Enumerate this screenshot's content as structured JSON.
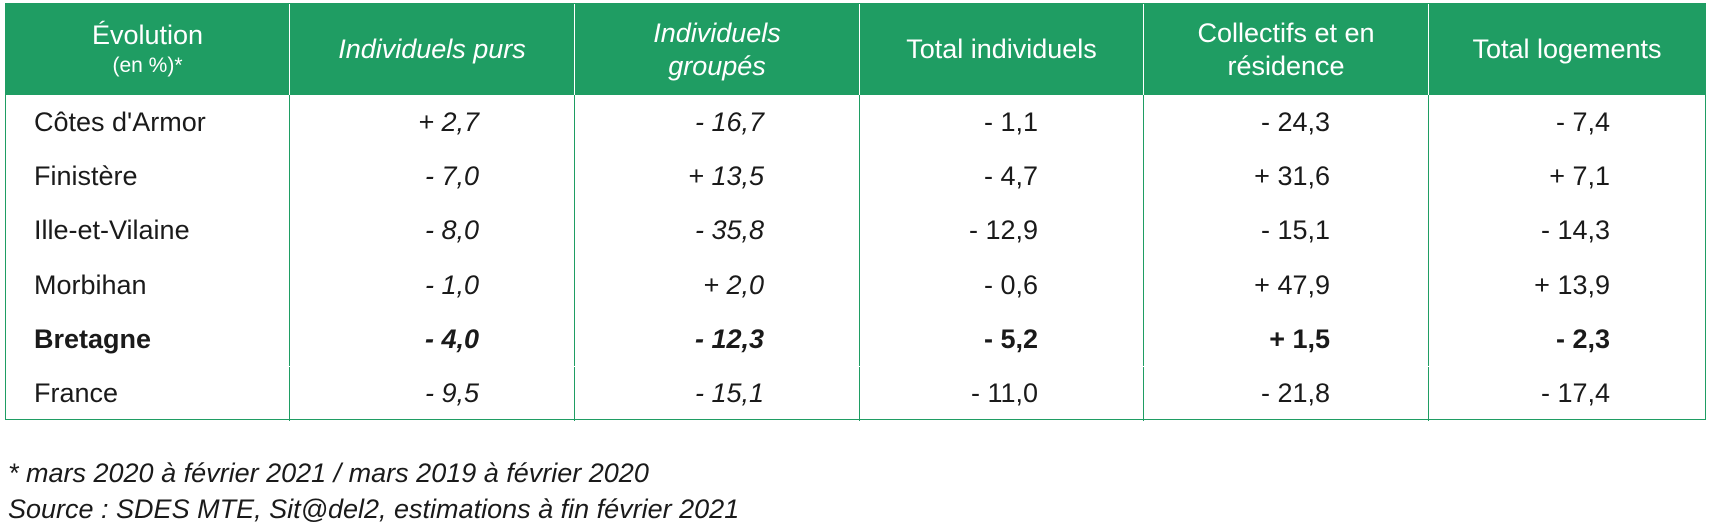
{
  "table": {
    "headers": [
      {
        "line1": "Évolution",
        "line2": "(en %)*"
      },
      {
        "text": "Individuels purs"
      },
      {
        "line1": "Individuels",
        "line2": "groupés"
      },
      {
        "text": "Total individuels"
      },
      {
        "line1": "Collectifs et en",
        "line2": "résidence"
      },
      {
        "text": "Total logements"
      }
    ],
    "rows": [
      {
        "label": "Côtes d'Armor",
        "values": [
          "+ 2,7",
          "- 16,7",
          "- 1,1",
          "- 24,3",
          "- 7,4"
        ]
      },
      {
        "label": "Finistère",
        "values": [
          "- 7,0",
          "+ 13,5",
          "- 4,7",
          "+ 31,6",
          "+ 7,1"
        ]
      },
      {
        "label": "Ille-et-Vilaine",
        "values": [
          "- 8,0",
          "- 35,8",
          "- 12,9",
          "- 15,1",
          "- 14,3"
        ]
      },
      {
        "label": "Morbihan",
        "values": [
          "- 1,0",
          "+ 2,0",
          "- 0,6",
          "+ 47,9",
          "+ 13,9"
        ]
      },
      {
        "label": "Bretagne",
        "values": [
          "- 4,0",
          "- 12,3",
          "- 5,2",
          "+ 1,5",
          "- 2,3"
        ]
      },
      {
        "label": "France",
        "values": [
          "- 9,5",
          "- 15,1",
          "- 11,0",
          "- 21,8",
          "- 17,4"
        ]
      }
    ]
  },
  "notes": {
    "footnote": "* mars 2020 à février 2021 / mars 2019 à février 2020",
    "source": "Source : SDES MTE, Sit@del2, estimations à fin février 2021"
  },
  "colors": {
    "header_bg": "#1f9d63",
    "border": "#1f9d63"
  }
}
